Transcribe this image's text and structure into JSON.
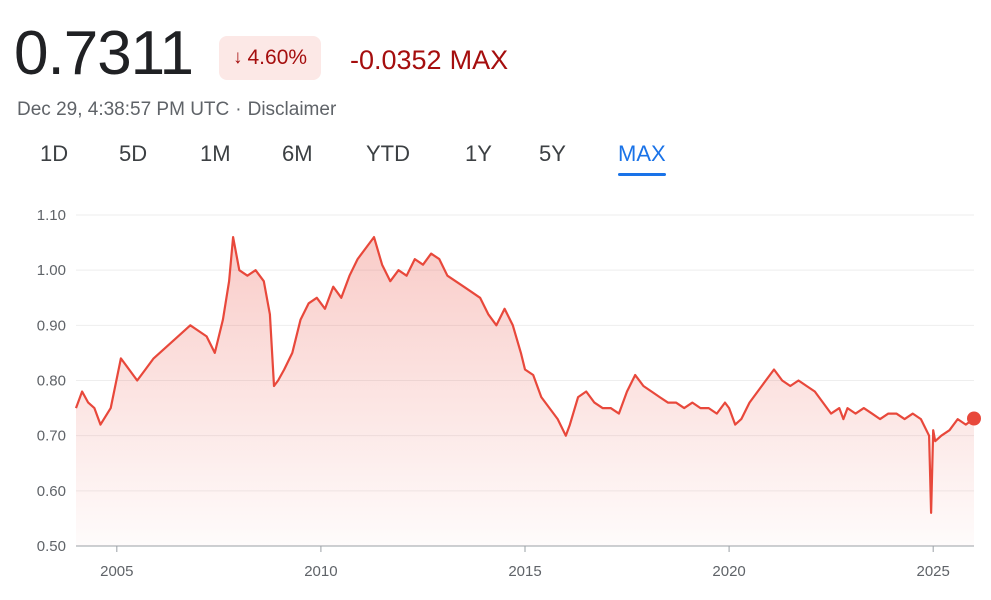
{
  "quote": {
    "price": "0.7311",
    "change_percent": "4.60%",
    "change_direction": "down",
    "change_abs": "-0.0352",
    "period": "MAX",
    "timestamp": "Dec 29, 4:38:57 PM UTC",
    "separator": "·",
    "disclaimer": "Disclaimer"
  },
  "tabs": [
    {
      "label": "1D"
    },
    {
      "label": "5D"
    },
    {
      "label": "1M"
    },
    {
      "label": "6M"
    },
    {
      "label": "YTD"
    },
    {
      "label": "1Y"
    },
    {
      "label": "5Y"
    },
    {
      "label": "MAX",
      "active": true
    }
  ],
  "icons": {
    "badge": "arrow-down-icon"
  },
  "colors": {
    "line": "#e8483b",
    "negative_text": "#a50e0e",
    "badge_bg": "#fce8e6",
    "active_tab": "#1a73e8",
    "grid": "#eeeeee",
    "axis": "#5f6368"
  },
  "chart_data": {
    "type": "area",
    "title": "",
    "xlabel": "",
    "ylabel": "",
    "xlim": [
      2004.0,
      2026.0
    ],
    "ylim": [
      0.5,
      1.1
    ],
    "yticks": [
      "0.50",
      "0.60",
      "0.70",
      "0.80",
      "0.90",
      "1.00",
      "1.10"
    ],
    "xticks": [
      2005,
      2010,
      2015,
      2020,
      2025
    ],
    "grid": "horizontal",
    "series": [
      {
        "x": [
          2004.0,
          2004.15,
          2004.3,
          2004.45,
          2004.6,
          2004.85,
          2005.1,
          2005.3,
          2005.5,
          2005.7,
          2005.9,
          2006.2,
          2006.5,
          2006.8,
          2007.0,
          2007.2,
          2007.4,
          2007.6,
          2007.75,
          2007.85,
          2008.0,
          2008.2,
          2008.4,
          2008.6,
          2008.75,
          2008.85,
          2008.95,
          2009.1,
          2009.3,
          2009.5,
          2009.7,
          2009.9,
          2010.1,
          2010.3,
          2010.5,
          2010.7,
          2010.9,
          2011.1,
          2011.3,
          2011.5,
          2011.7,
          2011.9,
          2012.1,
          2012.3,
          2012.5,
          2012.7,
          2012.9,
          2013.1,
          2013.3,
          2013.5,
          2013.7,
          2013.9,
          2014.1,
          2014.3,
          2014.5,
          2014.7,
          2014.9,
          2015.0,
          2015.2,
          2015.4,
          2015.6,
          2015.8,
          2016.0,
          2016.1,
          2016.3,
          2016.5,
          2016.7,
          2016.9,
          2017.1,
          2017.3,
          2017.5,
          2017.7,
          2017.9,
          2018.1,
          2018.3,
          2018.5,
          2018.7,
          2018.9,
          2019.1,
          2019.3,
          2019.5,
          2019.7,
          2019.9,
          2020.0,
          2020.15,
          2020.3,
          2020.5,
          2020.7,
          2020.9,
          2021.1,
          2021.3,
          2021.5,
          2021.7,
          2021.9,
          2022.1,
          2022.3,
          2022.5,
          2022.7,
          2022.8,
          2022.9,
          2023.1,
          2023.3,
          2023.5,
          2023.7,
          2023.9,
          2024.1,
          2024.3,
          2024.5,
          2024.7,
          2024.9,
          2024.95,
          2025.0,
          2025.05,
          2025.2,
          2025.4,
          2025.6,
          2025.8,
          2026.0
        ],
        "y": [
          0.75,
          0.78,
          0.76,
          0.75,
          0.72,
          0.75,
          0.84,
          0.82,
          0.8,
          0.82,
          0.84,
          0.86,
          0.88,
          0.9,
          0.89,
          0.88,
          0.85,
          0.91,
          0.98,
          1.06,
          1.0,
          0.99,
          1.0,
          0.98,
          0.92,
          0.79,
          0.8,
          0.82,
          0.85,
          0.91,
          0.94,
          0.95,
          0.93,
          0.97,
          0.95,
          0.99,
          1.02,
          1.04,
          1.06,
          1.01,
          0.98,
          1.0,
          0.99,
          1.02,
          1.01,
          1.03,
          1.02,
          0.99,
          0.98,
          0.97,
          0.96,
          0.95,
          0.92,
          0.9,
          0.93,
          0.9,
          0.85,
          0.82,
          0.81,
          0.77,
          0.75,
          0.73,
          0.7,
          0.72,
          0.77,
          0.78,
          0.76,
          0.75,
          0.75,
          0.74,
          0.78,
          0.81,
          0.79,
          0.78,
          0.77,
          0.76,
          0.76,
          0.75,
          0.76,
          0.75,
          0.75,
          0.74,
          0.76,
          0.75,
          0.72,
          0.73,
          0.76,
          0.78,
          0.8,
          0.82,
          0.8,
          0.79,
          0.8,
          0.79,
          0.78,
          0.76,
          0.74,
          0.75,
          0.73,
          0.75,
          0.74,
          0.75,
          0.74,
          0.73,
          0.74,
          0.74,
          0.73,
          0.74,
          0.73,
          0.7,
          0.56,
          0.71,
          0.69,
          0.7,
          0.71,
          0.73,
          0.72,
          0.7311
        ]
      }
    ],
    "last_point": {
      "x": 2026.0,
      "y": 0.7311
    }
  }
}
